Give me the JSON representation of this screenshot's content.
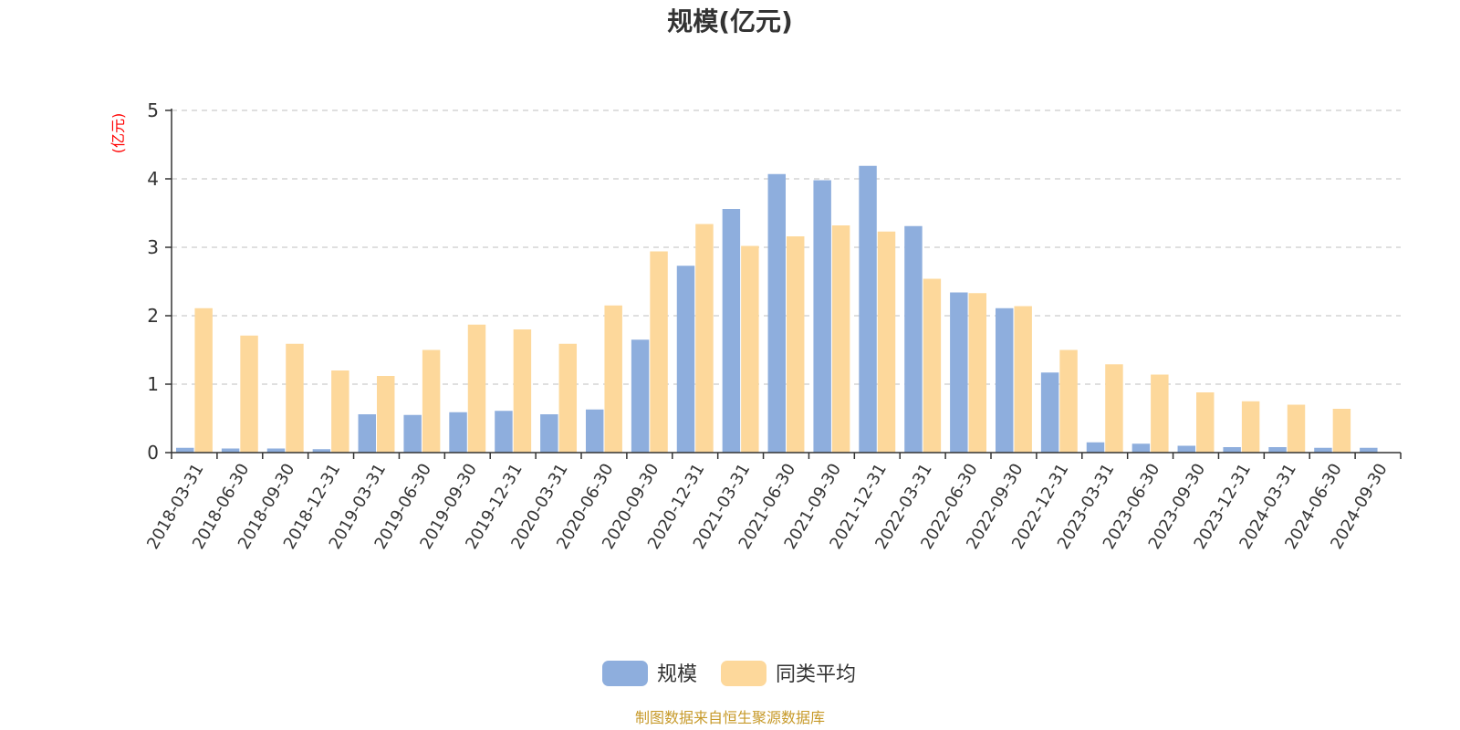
{
  "chart_data": {
    "type": "bar",
    "title": "规模(亿元)",
    "unit_label": "(亿元)",
    "categories": [
      "2018-03-31",
      "2018-06-30",
      "2018-09-30",
      "2018-12-31",
      "2019-03-31",
      "2019-06-30",
      "2019-09-30",
      "2019-12-31",
      "2020-03-31",
      "2020-06-30",
      "2020-09-30",
      "2020-12-31",
      "2021-03-31",
      "2021-06-30",
      "2021-09-30",
      "2021-12-31",
      "2022-03-31",
      "2022-06-30",
      "2022-09-30",
      "2022-12-31",
      "2023-03-31",
      "2023-06-30",
      "2023-09-30",
      "2023-12-31",
      "2024-03-31",
      "2024-06-30",
      "2024-09-30"
    ],
    "series": [
      {
        "name": "规模",
        "color": "#8eaedd",
        "values": [
          0.07,
          0.06,
          0.06,
          0.05,
          0.56,
          0.55,
          0.59,
          0.61,
          0.56,
          0.63,
          1.65,
          2.73,
          3.56,
          4.07,
          3.98,
          4.19,
          3.31,
          2.34,
          2.11,
          1.17,
          0.15,
          0.13,
          0.1,
          0.08,
          0.08,
          0.07,
          0.07
        ]
      },
      {
        "name": "同类平均",
        "color": "#fdd89b",
        "values": [
          2.11,
          1.71,
          1.59,
          1.2,
          1.12,
          1.5,
          1.87,
          1.8,
          1.59,
          2.15,
          2.94,
          3.34,
          3.02,
          3.16,
          3.32,
          3.23,
          2.54,
          2.33,
          2.14,
          1.5,
          1.29,
          1.14,
          0.88,
          0.75,
          0.7,
          0.64,
          null
        ]
      }
    ],
    "ylim": [
      0,
      5
    ],
    "yticks": [
      0,
      1,
      2,
      3,
      4,
      5
    ],
    "grid": "horizontal-dashed",
    "legend_position": "bottom-center"
  },
  "source_text": "制图数据来自恒生聚源数据库"
}
